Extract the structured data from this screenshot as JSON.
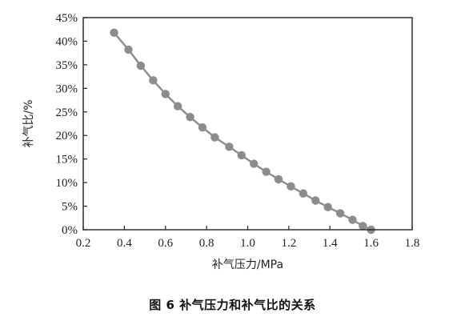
{
  "caption": "图 6 补气压力和补气比的关系",
  "chart_data": {
    "type": "line",
    "title": "",
    "xlabel": "补气压力/MPa",
    "ylabel": "补气比/%",
    "xlim": [
      0.2,
      1.8
    ],
    "ylim": [
      0,
      45
    ],
    "x_ticks": [
      0.2,
      0.4,
      0.6,
      0.8,
      1.0,
      1.2,
      1.4,
      1.6,
      1.8
    ],
    "x_tick_labels": [
      "0.2",
      "0.4",
      "0.6",
      "0.8",
      "1.0",
      "1.2",
      "1.4",
      "1.6",
      "1.8"
    ],
    "y_ticks": [
      0,
      5,
      10,
      15,
      20,
      25,
      30,
      35,
      40,
      45
    ],
    "y_tick_labels": [
      "0%",
      "5%",
      "10%",
      "15%",
      "20%",
      "25%",
      "30%",
      "35%",
      "40%",
      "45%"
    ],
    "grid": false,
    "legend": "none",
    "series": [
      {
        "color": "#8c8c8c",
        "marker": "circle",
        "x": [
          0.35,
          0.42,
          0.48,
          0.54,
          0.6,
          0.66,
          0.72,
          0.78,
          0.84,
          0.91,
          0.97,
          1.03,
          1.09,
          1.15,
          1.21,
          1.27,
          1.33,
          1.39,
          1.45,
          1.51,
          1.56,
          1.6
        ],
        "y": [
          41.8,
          38.2,
          34.8,
          31.7,
          28.8,
          26.2,
          23.9,
          21.7,
          19.6,
          17.6,
          15.8,
          14.0,
          12.3,
          10.7,
          9.2,
          7.7,
          6.2,
          4.8,
          3.5,
          2.1,
          0.8,
          0.0
        ]
      }
    ]
  }
}
